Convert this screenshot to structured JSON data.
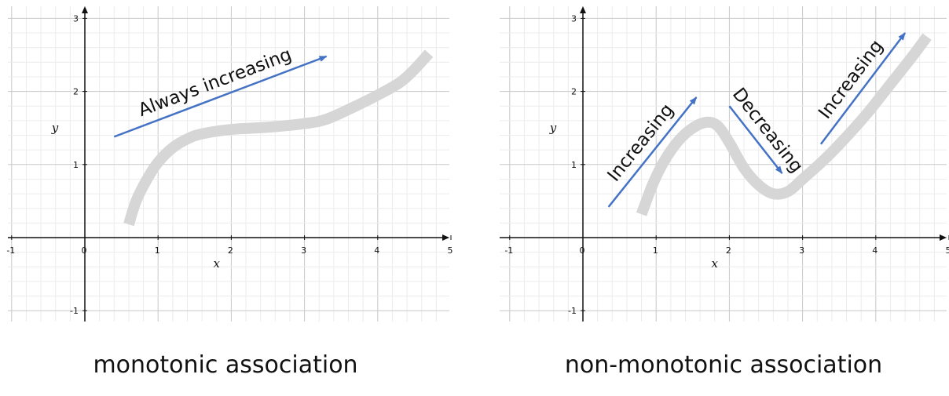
{
  "colors": {
    "grid_minor": "#ececec",
    "grid_major": "#c8c8c8",
    "axis": "#111111",
    "curve": "#d6d6d6",
    "arrow": "#4472c4",
    "text": "#111111"
  },
  "chart_data": [
    {
      "type": "line",
      "title": "monotonic association",
      "xlabel": "x",
      "ylabel": "y",
      "xlim": [
        -1.1,
        5
      ],
      "ylim": [
        -1.1,
        3.1
      ],
      "x_ticks": [
        {
          "v": -1,
          "label": "-1"
        },
        {
          "v": 0,
          "label": "0"
        },
        {
          "v": 1,
          "label": "1"
        },
        {
          "v": 2,
          "label": "2"
        },
        {
          "v": 3,
          "label": "3"
        },
        {
          "v": 4,
          "label": "4"
        },
        {
          "v": 5,
          "label": "5"
        }
      ],
      "y_ticks": [
        {
          "v": -1,
          "label": "-1"
        },
        {
          "v": 1,
          "label": "1"
        },
        {
          "v": 2,
          "label": "2"
        },
        {
          "v": 3,
          "label": "3"
        }
      ],
      "grid": true,
      "series": [
        {
          "x": [
            0.6,
            0.7,
            0.85,
            1.0,
            1.2,
            1.4,
            1.6,
            2.0,
            2.5,
            3.0,
            3.3,
            3.7,
            4.0,
            4.3,
            4.5,
            4.7
          ],
          "y": [
            0.18,
            0.5,
            0.8,
            1.03,
            1.23,
            1.35,
            1.42,
            1.48,
            1.51,
            1.56,
            1.62,
            1.8,
            1.95,
            2.12,
            2.3,
            2.52
          ]
        }
      ],
      "arrows": [
        {
          "label": "Always increasing",
          "from": [
            0.4,
            1.38
          ],
          "to": [
            3.3,
            2.48
          ]
        }
      ]
    },
    {
      "type": "line",
      "title": "non-monotonic association",
      "xlabel": "x",
      "ylabel": "y",
      "xlim": [
        -1.1,
        5
      ],
      "ylim": [
        -1.1,
        3.1
      ],
      "x_ticks": [
        {
          "v": -1,
          "label": "-1"
        },
        {
          "v": 0,
          "label": "0"
        },
        {
          "v": 1,
          "label": "1"
        },
        {
          "v": 2,
          "label": "2"
        },
        {
          "v": 3,
          "label": "3"
        },
        {
          "v": 4,
          "label": "4"
        },
        {
          "v": 5,
          "label": "5"
        }
      ],
      "y_ticks": [
        {
          "v": -1,
          "label": "-1"
        },
        {
          "v": 1,
          "label": "1"
        },
        {
          "v": 2,
          "label": "2"
        },
        {
          "v": 3,
          "label": "3"
        }
      ],
      "grid": true,
      "series": [
        {
          "x": [
            0.8,
            0.95,
            1.1,
            1.3,
            1.5,
            1.7,
            1.85,
            2.0,
            2.2,
            2.4,
            2.6,
            2.8,
            3.0,
            3.3,
            3.6,
            3.9,
            4.2,
            4.5,
            4.7
          ],
          "y": [
            0.32,
            0.72,
            1.03,
            1.32,
            1.5,
            1.58,
            1.52,
            1.3,
            0.95,
            0.72,
            0.6,
            0.63,
            0.8,
            1.07,
            1.38,
            1.72,
            2.1,
            2.48,
            2.75
          ]
        }
      ],
      "arrows": [
        {
          "label": "Increasing",
          "from": [
            0.35,
            0.42
          ],
          "to": [
            1.55,
            1.92
          ]
        },
        {
          "label": "Decreasing",
          "from": [
            2.0,
            1.8
          ],
          "to": [
            2.72,
            0.88
          ]
        },
        {
          "label": "Increasing",
          "from": [
            3.25,
            1.28
          ],
          "to": [
            4.4,
            2.8
          ]
        }
      ]
    }
  ]
}
